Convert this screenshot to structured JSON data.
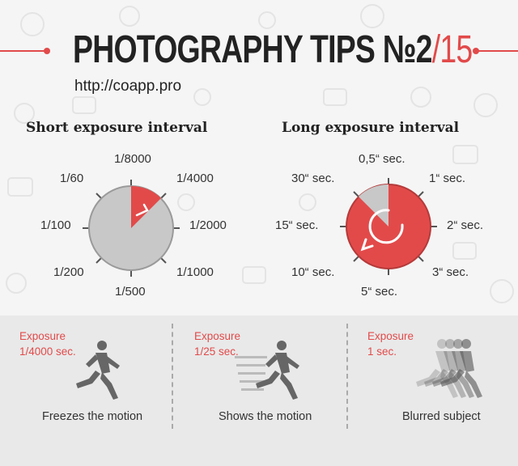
{
  "header": {
    "title_main": "PHOTOGRAPHY TIPS №2",
    "title_slash": "/",
    "title_total": "15",
    "url": "http://coapp.pro"
  },
  "short_exposure": {
    "heading": "Short exposure interval",
    "labels": {
      "top": "1/8000",
      "top_right": "1/4000",
      "right": "1/2000",
      "bottom_right": "1/1000",
      "bottom": "1/500",
      "bottom_left": "1/200",
      "left": "1/100",
      "top_left": "1/60"
    }
  },
  "long_exposure": {
    "heading": "Long exposure interval",
    "labels": {
      "top": "0,5“ sec.",
      "top_right": "1“ sec.",
      "right": "2“ sec.",
      "bottom_right": "3“ sec.",
      "bottom": "5“ sec.",
      "bottom_left": "10“ sec.",
      "left": "15“ sec.",
      "top_left": "30“ sec."
    }
  },
  "examples": [
    {
      "exposure_title": "Exposure",
      "exposure_value": "1/4000 sec.",
      "caption": "Freezes the motion"
    },
    {
      "exposure_title": "Exposure",
      "exposure_value": "1/25 sec.",
      "caption": "Shows the motion"
    },
    {
      "exposure_title": "Exposure",
      "exposure_value": "1 sec.",
      "caption": "Blurred subject"
    }
  ],
  "colors": {
    "accent": "#e24a4a",
    "dial_gray": "#c8c8c8",
    "text": "#222222"
  }
}
